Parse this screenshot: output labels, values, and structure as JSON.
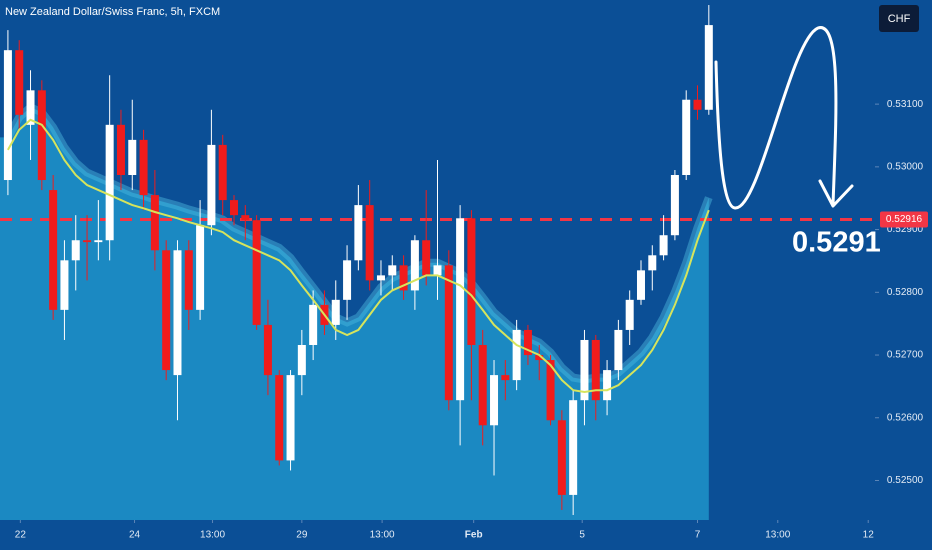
{
  "chart_data": {
    "type": "candlestick",
    "title": "New Zealand Dollar/Swiss Franc, 5h, FXCM",
    "currency": "CHF",
    "annotation": "0.5291",
    "up_color": "#ffffff",
    "down_color": "#f01c1c",
    "open": [
      0.52979,
      0.53186,
      0.53067,
      0.53122,
      0.52963,
      0.52772,
      0.52851,
      0.52883,
      0.5288,
      0.52883,
      0.53067,
      0.52987,
      0.53043,
      0.52955,
      0.52867,
      0.52668,
      0.52867,
      0.52772,
      0.52907,
      0.53035,
      0.52947,
      0.52923,
      0.52915,
      0.52748,
      0.52668,
      0.52532,
      0.52668,
      0.52716,
      0.5278,
      0.52748,
      0.52788,
      0.52851,
      0.52939,
      0.52819,
      0.52827,
      0.52843,
      0.52803,
      0.52883,
      0.52827,
      0.52843,
      0.52628,
      0.52918,
      0.52716,
      0.52588,
      0.52668,
      0.5266,
      0.5274,
      0.527,
      0.52692,
      0.52596,
      0.52477,
      0.52628,
      0.52724,
      0.52628,
      0.52676,
      0.5274,
      0.52788,
      0.52835,
      0.52859,
      0.52891,
      0.52987,
      0.53107,
      0.53091
    ],
    "high": [
      0.53218,
      0.53202,
      0.53154,
      0.53138,
      0.52987,
      0.52883,
      0.52923,
      0.52923,
      0.52947,
      0.53146,
      0.53091,
      0.53107,
      0.53059,
      0.52995,
      0.52883,
      0.52883,
      0.52883,
      0.52947,
      0.53091,
      0.53051,
      0.52955,
      0.52939,
      0.52923,
      0.52788,
      0.52676,
      0.52676,
      0.5274,
      0.52803,
      0.52803,
      0.52819,
      0.52875,
      0.52971,
      0.52979,
      0.52851,
      0.52859,
      0.52859,
      0.52891,
      0.52963,
      0.53011,
      0.52867,
      0.52939,
      0.52931,
      0.5274,
      0.52692,
      0.52692,
      0.52756,
      0.52748,
      0.52716,
      0.527,
      0.52612,
      0.52644,
      0.5274,
      0.52732,
      0.52692,
      0.52756,
      0.52803,
      0.52851,
      0.52875,
      0.52923,
      0.52995,
      0.53122,
      0.5313,
      0.53258
    ],
    "low": [
      0.52955,
      0.53059,
      0.53011,
      0.52963,
      0.52756,
      0.52724,
      0.52803,
      0.52819,
      0.52851,
      0.52851,
      0.52963,
      0.52963,
      0.52931,
      0.52835,
      0.5266,
      0.52596,
      0.5274,
      0.52756,
      0.52891,
      0.52923,
      0.52907,
      0.52883,
      0.5274,
      0.52636,
      0.52524,
      0.52516,
      0.52636,
      0.52692,
      0.52732,
      0.52724,
      0.52756,
      0.52835,
      0.52803,
      0.52795,
      0.52803,
      0.52788,
      0.52772,
      0.52811,
      0.52788,
      0.52612,
      0.52556,
      0.52628,
      0.52556,
      0.52508,
      0.52628,
      0.52644,
      0.52684,
      0.5266,
      0.52588,
      0.52453,
      0.52445,
      0.52588,
      0.52596,
      0.52604,
      0.5266,
      0.52716,
      0.5278,
      0.52803,
      0.52851,
      0.52883,
      0.52979,
      0.53075,
      0.53083
    ],
    "close": [
      0.53186,
      0.53083,
      0.53122,
      0.52979,
      0.52772,
      0.52851,
      0.52883,
      0.5288,
      0.52883,
      0.53067,
      0.52987,
      0.53043,
      0.52955,
      0.52867,
      0.52676,
      0.52867,
      0.52772,
      0.52907,
      0.53035,
      0.52947,
      0.52923,
      0.52915,
      0.52748,
      0.52668,
      0.52532,
      0.52668,
      0.52716,
      0.5278,
      0.52748,
      0.52788,
      0.52851,
      0.52939,
      0.52819,
      0.52827,
      0.52843,
      0.52803,
      0.52883,
      0.52827,
      0.52843,
      0.52628,
      0.52918,
      0.52716,
      0.52588,
      0.52668,
      0.5266,
      0.5274,
      0.527,
      0.52692,
      0.52596,
      0.52477,
      0.52628,
      0.52724,
      0.52628,
      0.52676,
      0.5274,
      0.52788,
      0.52835,
      0.52859,
      0.52891,
      0.52987,
      0.53107,
      0.53091,
      0.53226
    ],
    "series": [
      {
        "kind": "area",
        "color": "#1b89c2",
        "edge_color": "#4dbbe0",
        "values": [
          0.53047,
          0.53079,
          0.53095,
          0.53087,
          0.53063,
          0.53031,
          0.53007,
          0.52991,
          0.52983,
          0.52975,
          0.52967,
          0.52959,
          0.52954,
          0.52948,
          0.52943,
          0.52938,
          0.52932,
          0.52927,
          0.52922,
          0.52916,
          0.52903,
          0.52895,
          0.52887,
          0.52879,
          0.52871,
          0.52855,
          0.52831,
          0.52808,
          0.52784,
          0.5276,
          0.52752,
          0.5276,
          0.52784,
          0.52808,
          0.52823,
          0.52831,
          0.52839,
          0.52847,
          0.52847,
          0.52839,
          0.52831,
          0.52815,
          0.52792,
          0.52768,
          0.52752,
          0.52736,
          0.52728,
          0.5272,
          0.52704,
          0.5268,
          0.52664,
          0.52661,
          0.52664,
          0.52664,
          0.52672,
          0.52688,
          0.52704,
          0.52728,
          0.5276,
          0.528,
          0.52847,
          0.52903,
          0.52951
        ]
      },
      {
        "kind": "line",
        "color": "#d6e45c",
        "values": [
          0.53027,
          0.53059,
          0.53075,
          0.53067,
          0.53043,
          0.53011,
          0.52987,
          0.52971,
          0.52963,
          0.52955,
          0.52947,
          0.52939,
          0.52934,
          0.52928,
          0.52923,
          0.52918,
          0.52912,
          0.52907,
          0.52902,
          0.52896,
          0.52883,
          0.52875,
          0.52867,
          0.52859,
          0.52851,
          0.52835,
          0.52811,
          0.52788,
          0.52764,
          0.5274,
          0.52732,
          0.5274,
          0.52764,
          0.52788,
          0.52803,
          0.52811,
          0.52819,
          0.52827,
          0.52827,
          0.52819,
          0.52811,
          0.52795,
          0.52772,
          0.52748,
          0.52732,
          0.52716,
          0.52708,
          0.527,
          0.52684,
          0.5266,
          0.52644,
          0.52641,
          0.52644,
          0.52644,
          0.52652,
          0.52668,
          0.52684,
          0.52708,
          0.5274,
          0.5278,
          0.52827,
          0.52883,
          0.52931
        ]
      }
    ],
    "hline": {
      "value": 0.52916,
      "label": "0.52916",
      "color": "#f23645"
    },
    "xlim": [
      -0.7,
      76.7
    ],
    "xticks": [
      {
        "value": 1.1,
        "label": "22"
      },
      {
        "value": 11.2,
        "label": "24"
      },
      {
        "value": 18.1,
        "label": "13:00"
      },
      {
        "value": 26,
        "label": "29"
      },
      {
        "value": 33.1,
        "label": "13:00"
      },
      {
        "value": 41.2,
        "label": "Feb"
      },
      {
        "value": 50.8,
        "label": "5"
      },
      {
        "value": 61,
        "label": "7"
      },
      {
        "value": 68.1,
        "label": "13:00"
      },
      {
        "value": 76.1,
        "label": "12"
      }
    ],
    "ylim": [
      0.52437,
      0.53266
    ],
    "yticks": [
      {
        "value": 0.531,
        "label": "0.53100"
      },
      {
        "value": 0.53,
        "label": "0.53000"
      },
      {
        "value": 0.529,
        "label": "0.52900"
      },
      {
        "value": 0.528,
        "label": "0.52800"
      },
      {
        "value": 0.527,
        "label": "0.52700"
      },
      {
        "value": 0.526,
        "label": "0.52600"
      },
      {
        "value": 0.525,
        "label": "0.52500"
      }
    ]
  }
}
